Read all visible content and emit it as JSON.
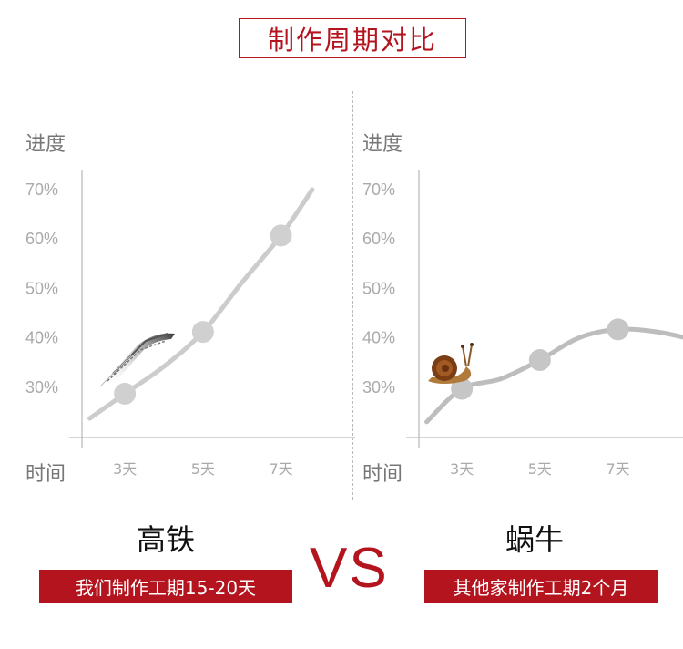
{
  "title": "制作周期对比",
  "chart_data": [
    {
      "type": "line",
      "name": "高铁",
      "ylabel": "进度",
      "xlabel": "时间",
      "yticks": [
        "70%",
        "60%",
        "50%",
        "40%",
        "30%"
      ],
      "ytick_values": [
        70,
        60,
        50,
        40,
        30
      ],
      "xticks": [
        "3天",
        "5天",
        "7天"
      ],
      "xtick_values": [
        3,
        5,
        7
      ],
      "xlim": [
        1.9,
        8.9
      ],
      "ylim": [
        20,
        72
      ],
      "marked_points": [
        {
          "x": 3,
          "y": 28.5
        },
        {
          "x": 5,
          "y": 41
        },
        {
          "x": 7,
          "y": 60.5
        }
      ],
      "curve": [
        {
          "x": 2.1,
          "y": 23.5
        },
        {
          "x": 3,
          "y": 28.5
        },
        {
          "x": 4,
          "y": 34
        },
        {
          "x": 5,
          "y": 41
        },
        {
          "x": 6,
          "y": 51
        },
        {
          "x": 7,
          "y": 60.5
        },
        {
          "x": 7.8,
          "y": 69.8
        }
      ],
      "icon": "high-speed-train-icon",
      "line_color": "#cccccc",
      "point_color": "#d0d0d0"
    },
    {
      "type": "line",
      "name": "蜗牛",
      "ylabel": "进度",
      "xlabel": "时间",
      "yticks": [
        "70%",
        "60%",
        "50%",
        "40%",
        "30%"
      ],
      "ytick_values": [
        70,
        60,
        50,
        40,
        30
      ],
      "xticks": [
        "3天",
        "5天",
        "7天"
      ],
      "xtick_values": [
        3,
        5,
        7
      ],
      "xlim": [
        1.9,
        8.9
      ],
      "ylim": [
        20,
        72
      ],
      "marked_points": [
        {
          "x": 3,
          "y": 29.5
        },
        {
          "x": 5,
          "y": 35.3
        },
        {
          "x": 7,
          "y": 41.5
        }
      ],
      "curve": [
        {
          "x": 2.1,
          "y": 22.8
        },
        {
          "x": 3,
          "y": 29.5
        },
        {
          "x": 4,
          "y": 31.5
        },
        {
          "x": 5,
          "y": 35.3
        },
        {
          "x": 6,
          "y": 39.8
        },
        {
          "x": 7,
          "y": 41.5
        },
        {
          "x": 8,
          "y": 41
        },
        {
          "x": 8.9,
          "y": 39.5
        }
      ],
      "icon": "snail-icon",
      "line_color": "#bdbdbd",
      "point_color": "#c6c6c6"
    }
  ],
  "left": {
    "name": "高铁",
    "banner": "我们制作工期15-20天"
  },
  "right": {
    "name": "蜗牛",
    "banner": "其他家制作工期2个月"
  },
  "vs": "VS",
  "colors": {
    "accent": "#b3141e",
    "axis": "#aaaaaa",
    "tick_text": "#aaaaaa",
    "label_text": "#777777"
  }
}
